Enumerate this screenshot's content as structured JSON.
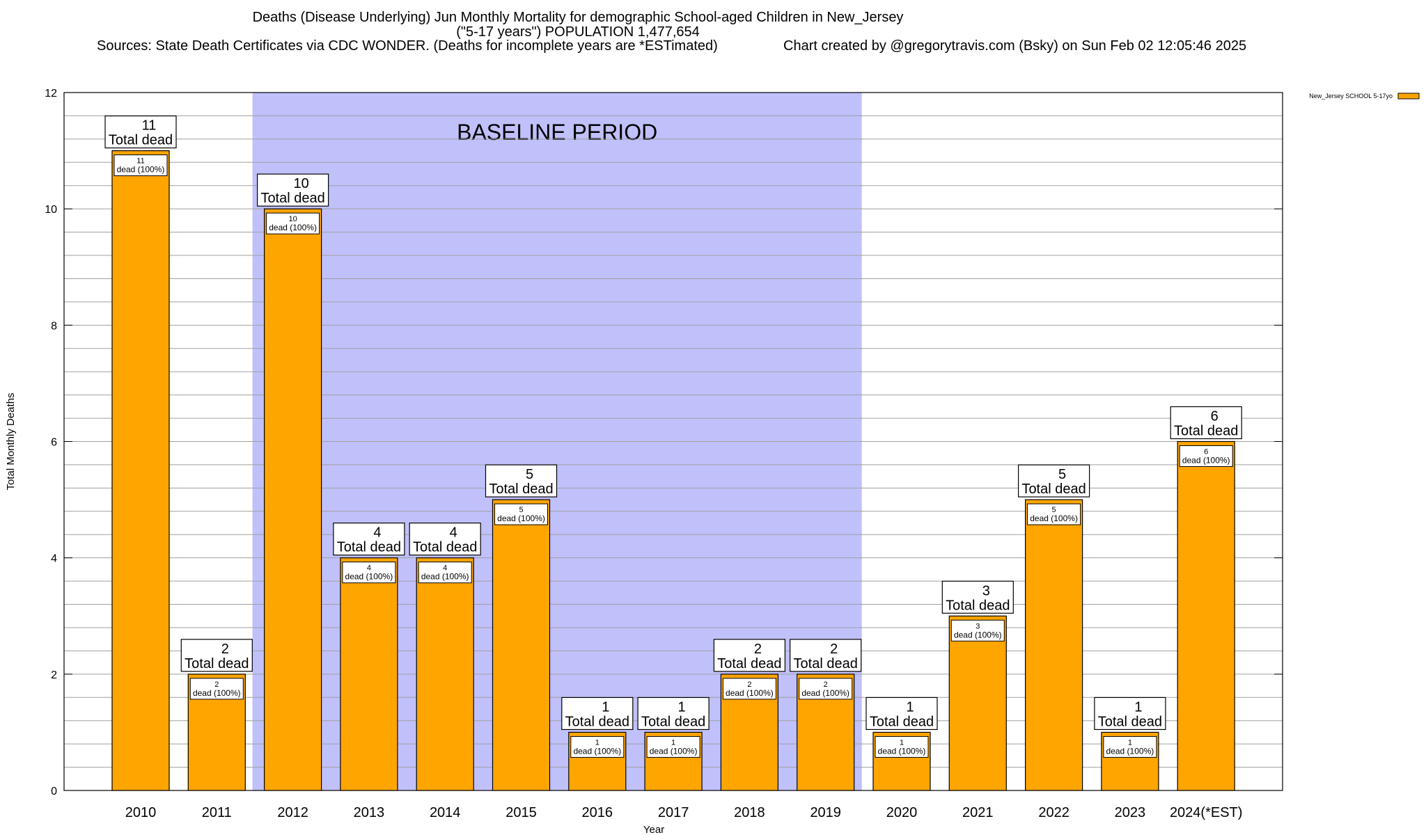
{
  "titles": {
    "line1": "Deaths (Disease Underlying) Jun Monthly Mortality for demographic School-aged Children in New_Jersey",
    "line2": "(\"5-17 years\") POPULATION 1,477,654",
    "sources": "Sources: State Death Certificates via CDC WONDER. (Deaths for incomplete years are *ESTimated)",
    "credit": "Chart created by @gregorytravis.com (Bsky) on Sun Feb 02 12:05:46 2025"
  },
  "colors": {
    "bar": "#ffa500",
    "baseline": "#c0c0fb",
    "grid": "#a0a0a0"
  },
  "chart_data": {
    "type": "bar",
    "categories": [
      "2010",
      "2011",
      "2012",
      "2013",
      "2014",
      "2015",
      "2016",
      "2017",
      "2018",
      "2019",
      "2020",
      "2021",
      "2022",
      "2023",
      "2024(*EST)"
    ],
    "series": [
      {
        "name": "New_Jersey SCHOOL 5-17yo",
        "values": [
          11,
          2,
          10,
          4,
          4,
          5,
          1,
          1,
          2,
          2,
          1,
          3,
          5,
          1,
          6
        ]
      }
    ],
    "total_label": "Total dead",
    "inner_label_suffix": "dead (100%)",
    "xlabel": "Year",
    "ylabel": "Total Monthly Deaths",
    "ylim": [
      0,
      12
    ],
    "yticks": [
      0,
      2,
      4,
      6,
      8,
      10,
      12
    ],
    "minor_step": 0.4,
    "baseline": {
      "label": "BASELINE PERIOD",
      "from": "2012",
      "to": "2019"
    },
    "grid": true,
    "legend_position": "top-right"
  }
}
